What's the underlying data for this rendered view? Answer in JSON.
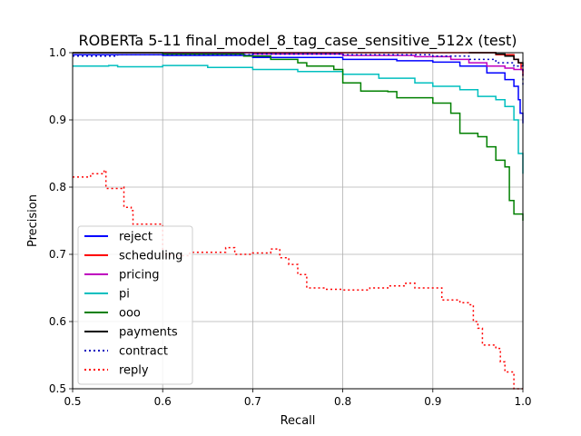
{
  "chart_data": {
    "type": "line",
    "title": "ROBERTa 5-11 final_model_8_tag_case_sensitive_512x (test)",
    "xlabel": "Recall",
    "ylabel": "Precision",
    "xlim": [
      0.5,
      1.0
    ],
    "ylim": [
      0.5,
      1.0
    ],
    "xticks": [
      "0.5",
      "0.6",
      "0.7",
      "0.8",
      "0.9",
      "1.0"
    ],
    "yticks": [
      "0.5",
      "0.6",
      "0.7",
      "0.8",
      "0.9",
      "1.0"
    ],
    "grid": true,
    "legend_position": "lower-left",
    "series": [
      {
        "name": "reject",
        "color": "#0000ff",
        "dash": "solid",
        "points": [
          [
            0.5,
            0.997
          ],
          [
            0.6,
            0.996
          ],
          [
            0.7,
            0.993
          ],
          [
            0.8,
            0.99
          ],
          [
            0.86,
            0.988
          ],
          [
            0.9,
            0.986
          ],
          [
            0.93,
            0.98
          ],
          [
            0.96,
            0.97
          ],
          [
            0.98,
            0.96
          ],
          [
            0.99,
            0.95
          ],
          [
            0.995,
            0.93
          ],
          [
            0.997,
            0.91
          ],
          [
            1.0,
            0.895
          ]
        ]
      },
      {
        "name": "scheduling",
        "color": "#ff0000",
        "dash": "solid",
        "points": [
          [
            0.5,
            1.0
          ],
          [
            0.9,
            1.0
          ],
          [
            0.97,
            0.997
          ],
          [
            0.99,
            0.99
          ],
          [
            0.995,
            0.985
          ],
          [
            0.998,
            0.975
          ],
          [
            1.0,
            0.965
          ]
        ]
      },
      {
        "name": "pricing",
        "color": "#bf00bf",
        "dash": "solid",
        "points": [
          [
            0.5,
            1.0
          ],
          [
            0.7,
            0.998
          ],
          [
            0.8,
            0.996
          ],
          [
            0.88,
            0.994
          ],
          [
            0.92,
            0.99
          ],
          [
            0.94,
            0.985
          ],
          [
            0.96,
            0.98
          ],
          [
            0.98,
            0.977
          ],
          [
            0.99,
            0.975
          ],
          [
            1.0,
            0.97
          ]
        ]
      },
      {
        "name": "pi",
        "color": "#00bfbf",
        "dash": "solid",
        "points": [
          [
            0.5,
            0.98
          ],
          [
            0.54,
            0.981
          ],
          [
            0.55,
            0.979
          ],
          [
            0.6,
            0.981
          ],
          [
            0.65,
            0.978
          ],
          [
            0.7,
            0.975
          ],
          [
            0.75,
            0.972
          ],
          [
            0.8,
            0.968
          ],
          [
            0.84,
            0.962
          ],
          [
            0.88,
            0.955
          ],
          [
            0.9,
            0.95
          ],
          [
            0.93,
            0.945
          ],
          [
            0.95,
            0.935
          ],
          [
            0.97,
            0.93
          ],
          [
            0.98,
            0.92
          ],
          [
            0.99,
            0.9
          ],
          [
            0.995,
            0.85
          ],
          [
            1.0,
            0.82
          ]
        ]
      },
      {
        "name": "ooo",
        "color": "#008000",
        "dash": "solid",
        "points": [
          [
            0.5,
            1.0
          ],
          [
            0.6,
            0.998
          ],
          [
            0.69,
            0.995
          ],
          [
            0.72,
            0.99
          ],
          [
            0.75,
            0.985
          ],
          [
            0.76,
            0.98
          ],
          [
            0.79,
            0.975
          ],
          [
            0.8,
            0.955
          ],
          [
            0.82,
            0.943
          ],
          [
            0.85,
            0.942
          ],
          [
            0.86,
            0.933
          ],
          [
            0.89,
            0.933
          ],
          [
            0.9,
            0.925
          ],
          [
            0.92,
            0.91
          ],
          [
            0.93,
            0.88
          ],
          [
            0.95,
            0.875
          ],
          [
            0.96,
            0.86
          ],
          [
            0.97,
            0.84
          ],
          [
            0.98,
            0.83
          ],
          [
            0.985,
            0.78
          ],
          [
            0.99,
            0.76
          ],
          [
            1.0,
            0.75
          ]
        ]
      },
      {
        "name": "payments",
        "color": "#000000",
        "dash": "solid",
        "points": [
          [
            0.94,
            1.0
          ],
          [
            0.97,
            0.998
          ],
          [
            0.98,
            0.995
          ],
          [
            0.99,
            0.99
          ],
          [
            0.995,
            0.985
          ],
          [
            1.0,
            0.98
          ]
        ]
      },
      {
        "name": "contract",
        "color": "#0000bf",
        "dash": "dotted",
        "points": [
          [
            0.5,
            0.995
          ],
          [
            0.55,
            0.997
          ],
          [
            0.7,
            0.998
          ],
          [
            0.8,
            0.997
          ],
          [
            0.9,
            0.995
          ],
          [
            0.94,
            0.99
          ],
          [
            0.97,
            0.985
          ],
          [
            0.99,
            0.98
          ],
          [
            1.0,
            0.95
          ]
        ]
      },
      {
        "name": "reply",
        "color": "#ff0000",
        "dash": "dotted",
        "points": [
          [
            0.5,
            0.815
          ],
          [
            0.52,
            0.82
          ],
          [
            0.535,
            0.825
          ],
          [
            0.537,
            0.798
          ],
          [
            0.555,
            0.8
          ],
          [
            0.557,
            0.77
          ],
          [
            0.565,
            0.765
          ],
          [
            0.567,
            0.745
          ],
          [
            0.6,
            0.7
          ],
          [
            0.61,
            0.698
          ],
          [
            0.63,
            0.703
          ],
          [
            0.67,
            0.71
          ],
          [
            0.68,
            0.7
          ],
          [
            0.7,
            0.702
          ],
          [
            0.72,
            0.708
          ],
          [
            0.73,
            0.695
          ],
          [
            0.74,
            0.685
          ],
          [
            0.75,
            0.67
          ],
          [
            0.76,
            0.65
          ],
          [
            0.78,
            0.648
          ],
          [
            0.8,
            0.647
          ],
          [
            0.83,
            0.65
          ],
          [
            0.85,
            0.653
          ],
          [
            0.87,
            0.657
          ],
          [
            0.88,
            0.65
          ],
          [
            0.9,
            0.65
          ],
          [
            0.91,
            0.632
          ],
          [
            0.93,
            0.628
          ],
          [
            0.94,
            0.625
          ],
          [
            0.945,
            0.6
          ],
          [
            0.95,
            0.59
          ],
          [
            0.955,
            0.565
          ],
          [
            0.97,
            0.56
          ],
          [
            0.975,
            0.54
          ],
          [
            0.98,
            0.525
          ],
          [
            0.99,
            0.5
          ],
          [
            1.0,
            0.5
          ]
        ]
      }
    ]
  }
}
